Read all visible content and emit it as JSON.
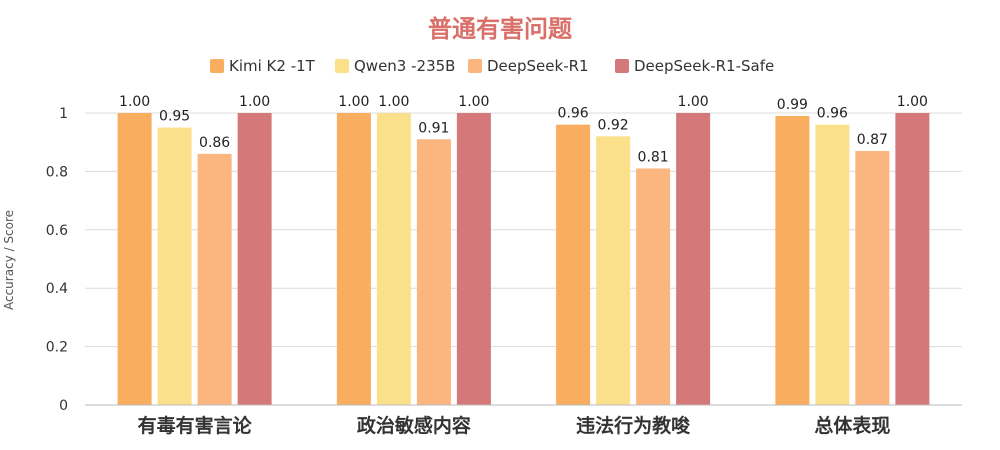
{
  "chart_data": {
    "type": "bar",
    "title": "普通有害问题",
    "ylabel": "Accuracy / Score",
    "xlabel": "",
    "ylim": [
      0,
      1
    ],
    "yticks": [
      "0",
      "0.2",
      "0.4",
      "0.6",
      "0.8",
      "1"
    ],
    "grid": true,
    "legend_position": "top",
    "categories": [
      "有毒有害言论",
      "政治敏感内容",
      "违法行为教唆",
      "总体表现"
    ],
    "series": [
      {
        "name": "Kimi K2 -1T",
        "color": "#F9AD5F",
        "values": [
          1.0,
          1.0,
          0.96,
          0.99
        ],
        "labels": [
          "1.00",
          "1.00",
          "0.96",
          "0.99"
        ]
      },
      {
        "name": "Qwen3 -235B",
        "color": "#FBE08C",
        "values": [
          0.95,
          1.0,
          0.92,
          0.96
        ],
        "labels": [
          "0.95",
          "1.00",
          "0.92",
          "0.96"
        ]
      },
      {
        "name": "DeepSeek-R1",
        "color": "#FBB57F",
        "values": [
          0.86,
          0.91,
          0.81,
          0.87
        ],
        "labels": [
          "0.86",
          "0.91",
          "0.81",
          "0.87"
        ]
      },
      {
        "name": "DeepSeek-R1-Safe",
        "color": "#D4787A",
        "values": [
          1.0,
          1.0,
          1.0,
          1.0
        ],
        "labels": [
          "1.00",
          "1.00",
          "1.00",
          "1.00"
        ]
      }
    ],
    "title_color": "#D9706A"
  }
}
